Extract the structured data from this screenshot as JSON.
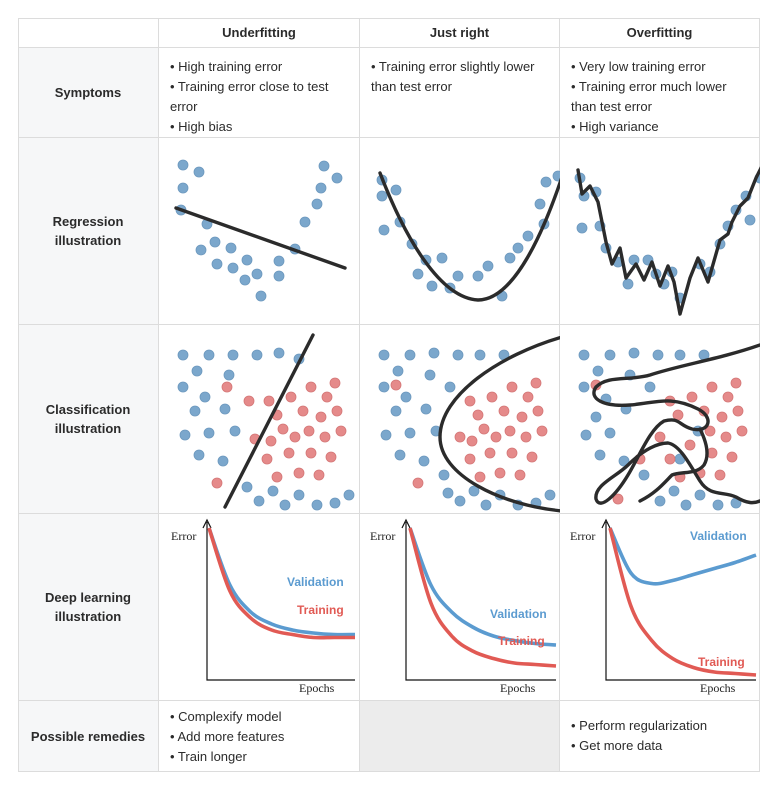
{
  "columns": [
    "Underfitting",
    "Just right",
    "Overfitting"
  ],
  "rows": {
    "symptoms": {
      "label": "Symptoms",
      "underfitting": [
        "• High training error",
        "• Training error close to test error",
        "• High bias"
      ],
      "just_right": [
        "• Training error slightly lower than test error"
      ],
      "overfitting": [
        "• Very low training error",
        "• Training error much lower than test error",
        "• High variance"
      ]
    },
    "regression": {
      "label": "Regression illustration"
    },
    "classification": {
      "label": "Classification illustration"
    },
    "deep_learning": {
      "label": "Deep learning illustration",
      "y_axis_label": "Error",
      "x_axis_label": "Epochs",
      "validation_label": "Validation",
      "training_label": "Training"
    },
    "remedies": {
      "label": "Possible remedies",
      "underfitting": [
        "• Complexify model",
        "• Add more features",
        "• Train longer"
      ],
      "just_right": [],
      "overfitting": [
        "• Perform regularization",
        "• Get more data"
      ]
    }
  },
  "colors": {
    "blue_point": "#7ba7cc",
    "red_point": "#e58a8a",
    "validation": "#5b9bd0",
    "training": "#e15a54",
    "fit_line": "#2b2b2b"
  },
  "chart_data": [
    {
      "type": "line",
      "panel": "underfitting",
      "xlabel": "Epochs",
      "ylabel": "Error",
      "series": [
        {
          "name": "Validation",
          "values": [
            1.0,
            0.62,
            0.44,
            0.36,
            0.32,
            0.3,
            0.29,
            0.29
          ]
        },
        {
          "name": "Training",
          "values": [
            1.0,
            0.58,
            0.4,
            0.32,
            0.29,
            0.27,
            0.27,
            0.27
          ]
        }
      ]
    },
    {
      "type": "line",
      "panel": "just_right",
      "xlabel": "Epochs",
      "ylabel": "Error",
      "series": [
        {
          "name": "Validation",
          "values": [
            1.0,
            0.62,
            0.44,
            0.34,
            0.28,
            0.25,
            0.23,
            0.22
          ]
        },
        {
          "name": "Training",
          "values": [
            1.0,
            0.5,
            0.28,
            0.18,
            0.13,
            0.1,
            0.09,
            0.08
          ]
        }
      ]
    },
    {
      "type": "line",
      "panel": "overfitting",
      "xlabel": "Epochs",
      "ylabel": "Error",
      "series": [
        {
          "name": "Validation",
          "values": [
            1.0,
            0.7,
            0.63,
            0.65,
            0.69,
            0.73,
            0.77,
            0.82
          ]
        },
        {
          "name": "Training",
          "values": [
            1.0,
            0.48,
            0.25,
            0.13,
            0.07,
            0.04,
            0.03,
            0.02
          ]
        }
      ]
    }
  ]
}
